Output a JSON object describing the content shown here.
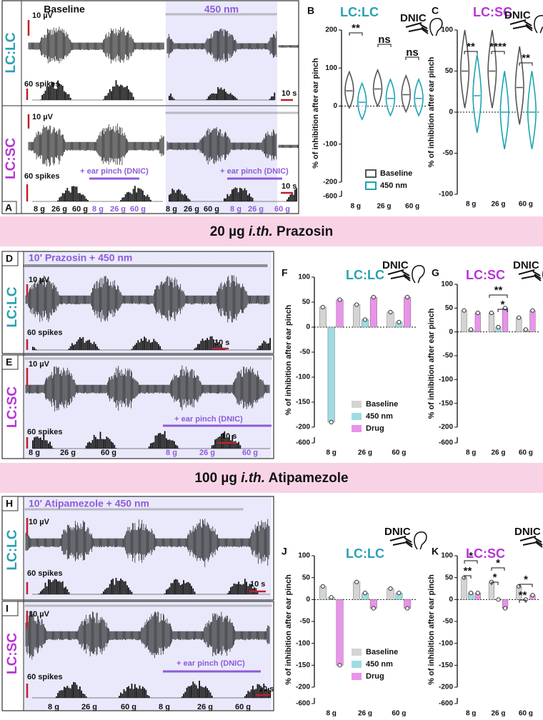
{
  "trace_panels": [
    {
      "letter": "A",
      "conditions": [
        "Baseline",
        "450 nm"
      ],
      "rows": [
        {
          "label": "LC:LC",
          "scale_v": "10 µV",
          "scale_spikes": "60 spikes",
          "scale_t": "10 s"
        },
        {
          "label": "LC:SC",
          "scale_v": "10 µV",
          "scale_spikes": "60 spikes",
          "scale_t": "10 s",
          "stimulus": [
            "+ ear pinch (DNIC)",
            "+ ear pinch (DNIC)"
          ],
          "forces": [
            "8 g",
            "26 g",
            "60 g",
            "8 g",
            "26 g",
            "60 g",
            "8 g",
            "26 g",
            "60 g",
            "8 g",
            "26 g",
            "60 g"
          ]
        }
      ]
    },
    {
      "letter": "D",
      "label": "LC:LC",
      "header": "10′ Prazosin + 450 nm",
      "scale_v": "10 µV",
      "scale_spikes": "60 spikes",
      "scale_t": "10 s"
    },
    {
      "letter": "E",
      "label": "LC:SC",
      "scale_v": "10 µV",
      "scale_spikes": "60 spikes",
      "scale_t": "10 s",
      "stimulus": "+ ear pinch (DNIC)",
      "forces": [
        "8 g",
        "26 g",
        "60 g",
        "8 g",
        "26 g",
        "60 g"
      ]
    },
    {
      "letter": "H",
      "label": "LC:LC",
      "header": "10′ Atipamezole + 450 nm",
      "scale_v": "10 µV",
      "scale_spikes": "60 spikes",
      "scale_t": "10 s"
    },
    {
      "letter": "I",
      "label": "LC:SC",
      "scale_v": "10 µV",
      "scale_spikes": "60 spikes",
      "scale_t": "10 s",
      "stimulus": "+ ear pinch (DNIC)",
      "forces": [
        "8 g",
        "26 g",
        "60 g",
        "8 g",
        "26 g",
        "60 g"
      ]
    }
  ],
  "banners": [
    {
      "dose": "20 µg",
      "route": "i.th.",
      "drug": "Prazosin"
    },
    {
      "dose": "100 µg",
      "route": "i.th.",
      "drug": "Atipamezole"
    }
  ],
  "chart_data": [
    {
      "type": "violin",
      "letter": "B",
      "title": "LC:LC",
      "title_color": "#2aa0b3",
      "subtitle": "DNIC",
      "ylabel": "% of inhibition after ear pinch",
      "categories": [
        "8 g",
        "26 g",
        "60 g"
      ],
      "series": [
        {
          "name": "Baseline",
          "color": "#555555",
          "values": [
            40,
            45,
            30
          ]
        },
        {
          "name": "450 nm",
          "color": "#1ba3b4",
          "values": [
            10,
            20,
            20
          ]
        }
      ],
      "ylim": [
        -200,
        200
      ],
      "yticks": [
        -200,
        -100,
        0,
        100,
        200
      ],
      "break_tick": -600,
      "legend": true,
      "annotations": [
        "**",
        "ns",
        "ns"
      ]
    },
    {
      "type": "violin",
      "letter": "C",
      "title": "LC:SC",
      "title_color": "#b833d6",
      "subtitle": "DNIC",
      "ylabel": "% of inhibition after ear pinch",
      "categories": [
        "8 g",
        "26 g",
        "60 g"
      ],
      "series": [
        {
          "color": "#555555",
          "values": [
            50,
            50,
            30
          ]
        },
        {
          "color": "#1ba3b4",
          "values": [
            20,
            0,
            0
          ]
        }
      ],
      "ylim": [
        -100,
        100
      ],
      "yticks": [
        -100,
        -50,
        0,
        50,
        100
      ],
      "legend": false,
      "annotations": [
        "**",
        "****",
        "**"
      ]
    },
    {
      "type": "bar",
      "letter": "F",
      "title": "LC:LC",
      "title_color": "#2aa0b3",
      "subtitle": "DNIC",
      "ylabel": "% of inhibition after ear pinch",
      "categories": [
        "8 g",
        "26 g",
        "60 g"
      ],
      "series": [
        {
          "name": "Baseline",
          "color": "#d4d4d4",
          "values": [
            40,
            45,
            30
          ]
        },
        {
          "name": "450 nm",
          "color": "#9fdbe3",
          "values": [
            -190,
            15,
            10
          ]
        },
        {
          "name": "Drug",
          "color": "#e993ea",
          "values": [
            55,
            60,
            60
          ]
        }
      ],
      "ylim": [
        -200,
        100
      ],
      "yticks": [
        -200,
        -150,
        -100,
        -50,
        0,
        50,
        100
      ],
      "break_tick": -600,
      "legend": true,
      "annotations": []
    },
    {
      "type": "bar",
      "letter": "G",
      "title": "LC:SC",
      "title_color": "#b833d6",
      "subtitle": "DNIC",
      "ylabel": "% of inhibition after ear pinch",
      "categories": [
        "8 g",
        "26 g",
        "60 g"
      ],
      "series": [
        {
          "color": "#d4d4d4",
          "values": [
            45,
            40,
            30
          ]
        },
        {
          "color": "#9fdbe3",
          "values": [
            5,
            10,
            5
          ]
        },
        {
          "color": "#e993ea",
          "values": [
            40,
            50,
            45
          ]
        }
      ],
      "ylim": [
        -200,
        100
      ],
      "yticks": [
        -200,
        -150,
        -100,
        -50,
        0,
        50,
        100
      ],
      "break_tick": -600,
      "legend": false,
      "annotations": [
        "**",
        "*"
      ]
    },
    {
      "type": "bar",
      "letter": "J",
      "title": "LC:LC",
      "title_color": "#2aa0b3",
      "subtitle": "DNIC",
      "ylabel": "% of inhibition after ear pinch",
      "categories": [
        "8 g",
        "26 g",
        "60 g"
      ],
      "series": [
        {
          "name": "Baseline",
          "color": "#d4d4d4",
          "values": [
            30,
            40,
            25
          ]
        },
        {
          "name": "450 nm",
          "color": "#9fdbe3",
          "values": [
            5,
            15,
            15
          ]
        },
        {
          "name": "Drug",
          "color": "#e993ea",
          "values": [
            -150,
            -20,
            -20
          ]
        }
      ],
      "ylim": [
        -200,
        100
      ],
      "yticks": [
        -200,
        -150,
        -100,
        -50,
        0,
        50,
        100
      ],
      "break_tick": -600,
      "legend": true,
      "annotations": []
    },
    {
      "type": "bar",
      "letter": "K",
      "title": "LC:SC",
      "title_color": "#b833d6",
      "subtitle": "DNIC",
      "ylabel": "% of inhibition after ear pinch",
      "categories": [
        "8 g",
        "26 g",
        "60 g"
      ],
      "series": [
        {
          "color": "#d4d4d4",
          "values": [
            50,
            40,
            30
          ]
        },
        {
          "color": "#9fdbe3",
          "values": [
            15,
            0,
            0
          ]
        },
        {
          "color": "#e993ea",
          "values": [
            15,
            -20,
            10
          ]
        }
      ],
      "ylim": [
        -200,
        100
      ],
      "yticks": [
        -200,
        -150,
        -100,
        -50,
        0,
        50,
        100
      ],
      "break_tick": -600,
      "legend": false,
      "annotations": [
        "*",
        "**",
        "*",
        "*",
        "*",
        "**"
      ]
    }
  ]
}
